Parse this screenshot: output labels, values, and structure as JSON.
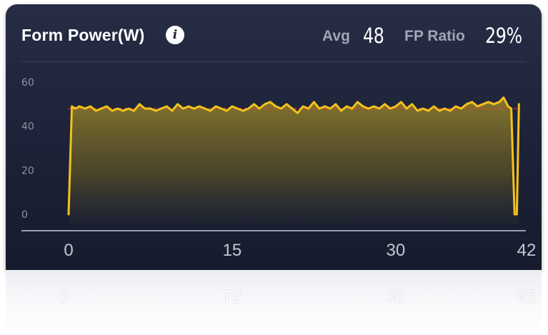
{
  "header": {
    "title": "Form Power(W)",
    "info_icon": "info-icon",
    "avg_label": "Avg",
    "avg_value": "48",
    "fp_ratio_label": "FP Ratio",
    "fp_ratio_value": "29%"
  },
  "colors": {
    "line": "#f4c21b",
    "fill": "#8a7a2c",
    "average_line": "#e0423a",
    "background": "#1c2237"
  },
  "chart_data": {
    "type": "area",
    "title": "Form Power(W)",
    "xlabel": "",
    "ylabel": "",
    "xlim": [
      0,
      42
    ],
    "ylim": [
      0,
      60
    ],
    "x_ticks": [
      0,
      15,
      30,
      42
    ],
    "y_ticks": [
      0,
      20,
      40,
      60
    ],
    "grid": false,
    "average": 48,
    "series": [
      {
        "x": [
          0,
          0.3,
          0.6,
          1.0,
          1.5,
          2.0,
          2.5,
          3.0,
          3.5,
          4.0,
          4.5,
          5.0,
          5.5,
          6.0,
          6.5,
          7.0,
          7.5,
          8.0,
          8.5,
          9.0,
          9.5,
          10.0,
          10.5,
          11.0,
          11.5,
          12.0,
          12.5,
          13.0,
          13.5,
          14.0,
          14.5,
          15.0,
          15.5,
          16.0,
          16.5,
          17.0,
          17.5,
          18.0,
          18.5,
          19.0,
          19.5,
          20.0,
          20.5,
          21.0,
          21.5,
          22.0,
          22.5,
          23.0,
          23.5,
          24.0,
          24.5,
          25.0,
          25.5,
          26.0,
          26.5,
          27.0,
          27.5,
          28.0,
          28.5,
          29.0,
          29.5,
          30.0,
          30.5,
          31.0,
          31.5,
          32.0,
          32.5,
          33.0,
          33.5,
          34.0,
          34.5,
          35.0,
          35.5,
          36.0,
          36.5,
          37.0,
          37.5,
          38.0,
          38.5,
          39.0,
          39.5,
          39.9,
          40.3,
          40.6,
          40.9,
          41.1,
          41.3
        ],
        "values": [
          0,
          49,
          48,
          49,
          48,
          49,
          47,
          48,
          49,
          47,
          48,
          47,
          48,
          47,
          50,
          48,
          48,
          47,
          48,
          49,
          47,
          50,
          48,
          49,
          48,
          49,
          48,
          47,
          49,
          48,
          47,
          49,
          48,
          47,
          48,
          50,
          48,
          50,
          51,
          49,
          48,
          50,
          48,
          46,
          49,
          48,
          51,
          48,
          49,
          48,
          50,
          47,
          49,
          48,
          51,
          49,
          48,
          49,
          48,
          50,
          48,
          49,
          51,
          48,
          50,
          47,
          48,
          47,
          49,
          47,
          48,
          47,
          49,
          48,
          50,
          51,
          49,
          50,
          51,
          50,
          51,
          53,
          49,
          48,
          0,
          0,
          50
        ]
      }
    ]
  }
}
